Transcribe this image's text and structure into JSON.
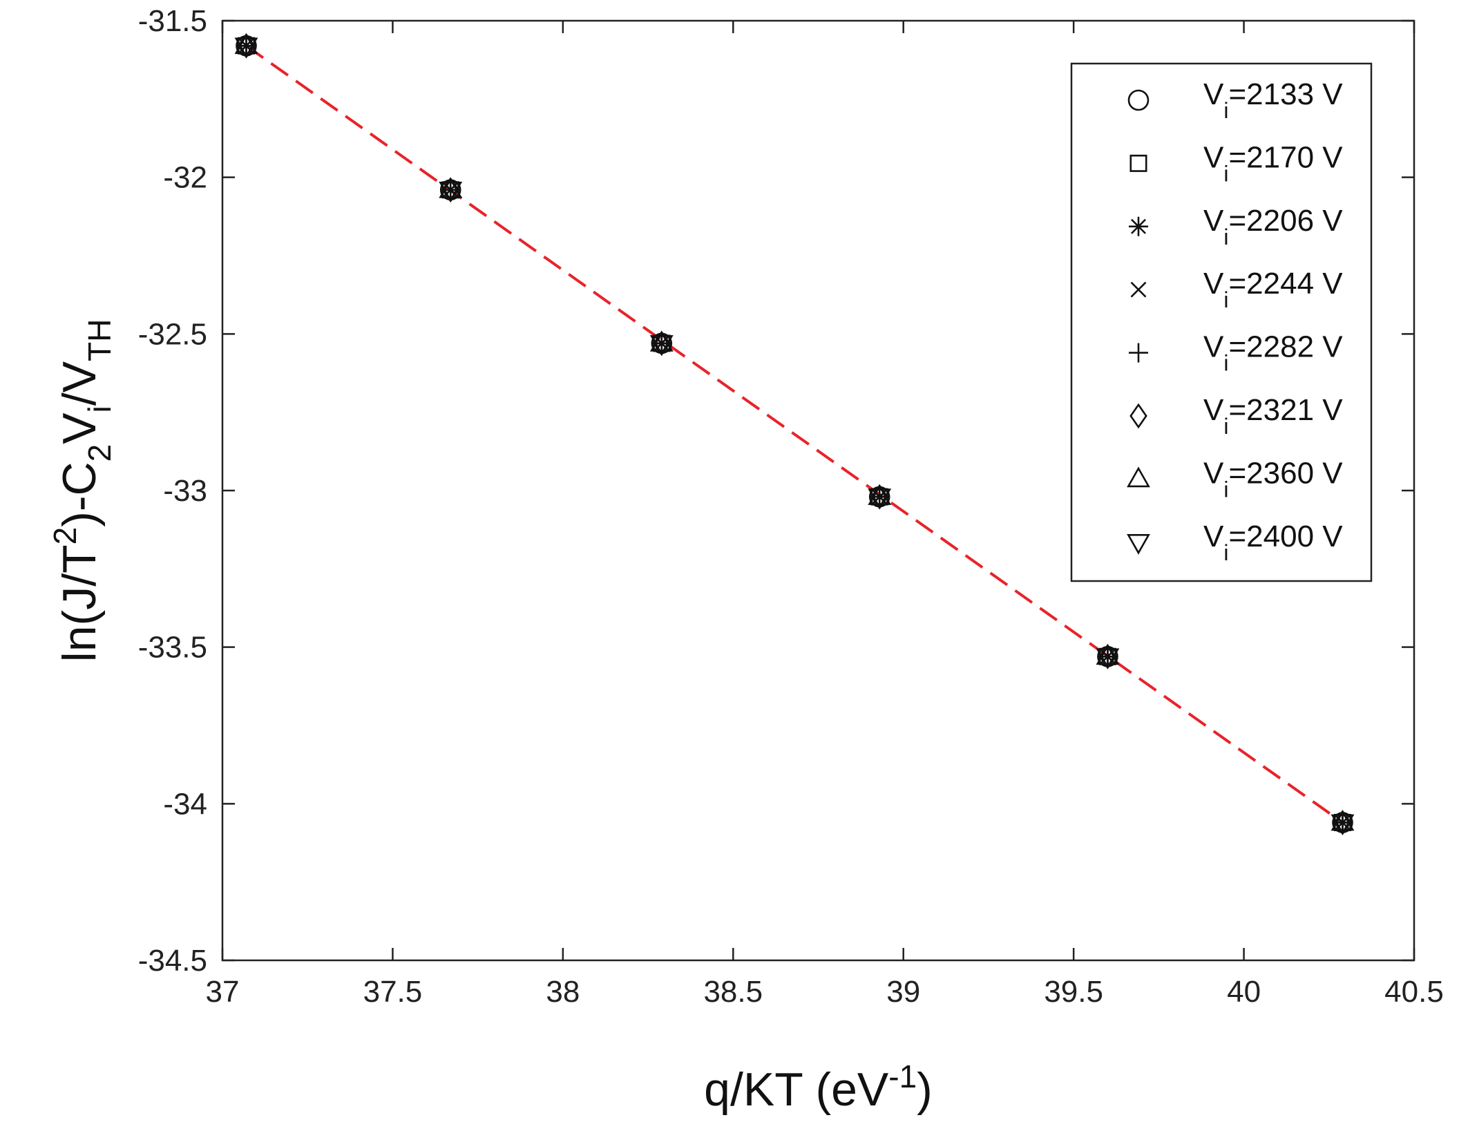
{
  "chart_data": {
    "type": "scatter",
    "title": "",
    "xlabel": {
      "base": "q/KT (eV",
      "sup": "-1",
      "tail": ")"
    },
    "ylabel": {
      "parts": [
        {
          "t": "ln(J/T"
        },
        {
          "t": "2",
          "s": "sup"
        },
        {
          "t": ")-C"
        },
        {
          "t": "2",
          "s": "sub"
        },
        {
          "t": "V"
        },
        {
          "t": "i",
          "s": "sub"
        },
        {
          "t": "/V"
        },
        {
          "t": "TH",
          "s": "sub"
        }
      ]
    },
    "xlim": [
      37,
      40.5
    ],
    "ylim": [
      -34.5,
      -31.5
    ],
    "xticks": [
      37,
      37.5,
      38,
      38.5,
      39,
      39.5,
      40,
      40.5
    ],
    "xtick_labels": [
      "37",
      "37.5",
      "38",
      "38.5",
      "39",
      "39.5",
      "40",
      "40.5"
    ],
    "yticks": [
      -31.5,
      -32,
      -32.5,
      -33,
      -33.5,
      -34,
      -34.5
    ],
    "ytick_labels": [
      "-31.5",
      "-32",
      "-32.5",
      "-33",
      "-33.5",
      "-34",
      "-34.5"
    ],
    "grid": false,
    "legend_position": "top-right",
    "x": [
      37.07,
      37.67,
      38.29,
      38.93,
      39.6,
      40.29
    ],
    "series": [
      {
        "name": "Vi=2133 V",
        "label_base": "V",
        "label_sub": "i",
        "label_rest": "=2133 V",
        "marker": "circle",
        "values": [
          -31.58,
          -32.04,
          -32.53,
          -33.02,
          -33.53,
          -34.06
        ]
      },
      {
        "name": "Vi=2170 V",
        "label_base": "V",
        "label_sub": "i",
        "label_rest": "=2170 V",
        "marker": "square",
        "values": [
          -31.58,
          -32.04,
          -32.53,
          -33.02,
          -33.53,
          -34.06
        ]
      },
      {
        "name": "Vi=2206 V",
        "label_base": "V",
        "label_sub": "i",
        "label_rest": "=2206 V",
        "marker": "asterisk",
        "values": [
          -31.58,
          -32.04,
          -32.53,
          -33.02,
          -33.53,
          -34.06
        ]
      },
      {
        "name": "Vi=2244 V",
        "label_base": "V",
        "label_sub": "i",
        "label_rest": "=2244 V",
        "marker": "x",
        "values": [
          -31.58,
          -32.04,
          -32.53,
          -33.02,
          -33.53,
          -34.06
        ]
      },
      {
        "name": "Vi=2282 V",
        "label_base": "V",
        "label_sub": "i",
        "label_rest": "=2282 V",
        "marker": "plus",
        "values": [
          -31.58,
          -32.04,
          -32.53,
          -33.02,
          -33.53,
          -34.06
        ]
      },
      {
        "name": "Vi=2321 V",
        "label_base": "V",
        "label_sub": "i",
        "label_rest": "=2321 V",
        "marker": "diamond",
        "values": [
          -31.58,
          -32.04,
          -32.53,
          -33.02,
          -33.53,
          -34.06
        ]
      },
      {
        "name": "Vi=2360 V",
        "label_base": "V",
        "label_sub": "i",
        "label_rest": "=2360 V",
        "marker": "triangle-up",
        "values": [
          -31.58,
          -32.04,
          -32.53,
          -33.02,
          -33.53,
          -34.06
        ]
      },
      {
        "name": "Vi=2400 V",
        "label_base": "V",
        "label_sub": "i",
        "label_rest": "=2400 V",
        "marker": "triangle-down",
        "values": [
          -31.58,
          -32.04,
          -32.53,
          -33.02,
          -33.53,
          -34.06
        ]
      }
    ],
    "fit_line": {
      "style": "dashed",
      "color": "#e8232a",
      "x": [
        37.07,
        40.29
      ],
      "y": [
        -31.58,
        -34.06
      ]
    }
  },
  "colors": {
    "axis": "#222222",
    "marker": "#111111",
    "fit": "#e8232a",
    "background": "#ffffff"
  }
}
